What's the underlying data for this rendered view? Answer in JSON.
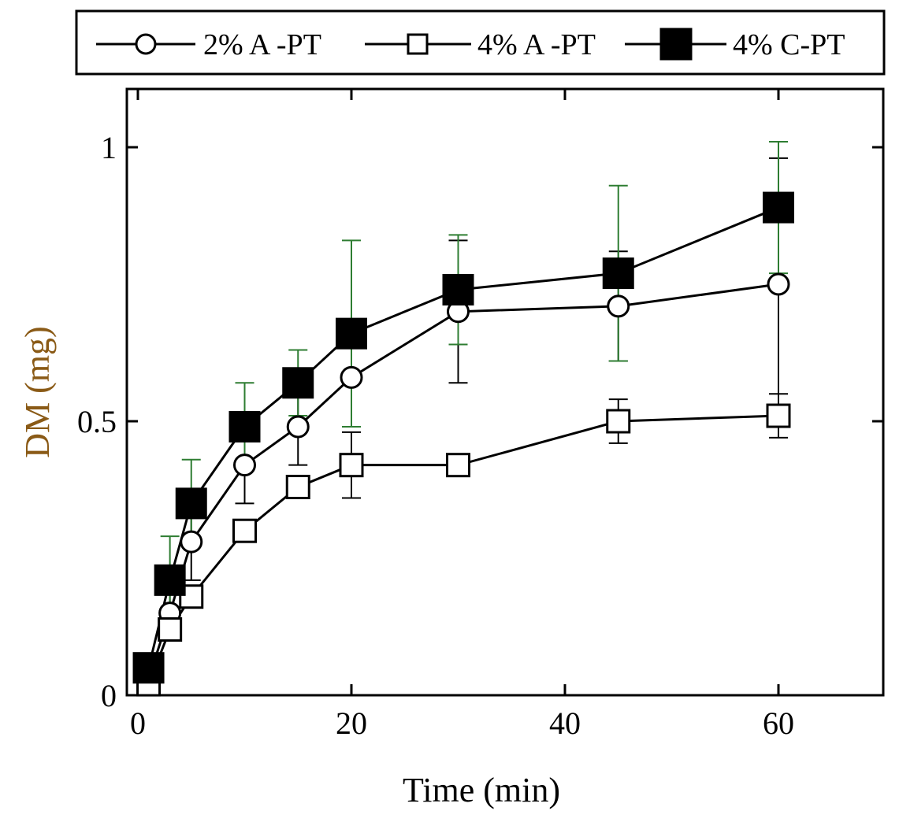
{
  "chart_data": {
    "type": "line",
    "title": "",
    "xlabel": "Time (min)",
    "ylabel": "DM (mg)",
    "xlim": [
      0,
      70
    ],
    "ylim": [
      0,
      1.1
    ],
    "xticks": [
      0,
      20,
      40,
      60
    ],
    "yticks": [
      0,
      0.5,
      1
    ],
    "x_tick_labels": [
      "0",
      "20",
      "40",
      "60"
    ],
    "y_tick_labels": [
      "0",
      "0.5",
      "1"
    ],
    "grid": false,
    "legend_position": "top, outside plot area",
    "colors": {
      "line": "#000000",
      "errorbar_green": "#2e7d32",
      "errorbar_black": "#000000",
      "axis_title": "#8a5a16"
    },
    "series": [
      {
        "name": "2% A -PT",
        "marker": "open-circle",
        "x": [
          1,
          3,
          5,
          10,
          15,
          20,
          30,
          45,
          60
        ],
        "y": [
          0.03,
          0.15,
          0.28,
          0.42,
          0.49,
          0.58,
          0.7,
          0.71,
          0.75
        ],
        "err": [
          0.01,
          0.05,
          0.07,
          0.07,
          0.07,
          0.09,
          0.13,
          0.1,
          0.23
        ],
        "errbar_color": "#000000"
      },
      {
        "name": "4% A -PT",
        "marker": "open-square",
        "x": [
          1,
          3,
          5,
          10,
          15,
          20,
          30,
          45,
          60
        ],
        "y": [
          0.02,
          0.12,
          0.18,
          0.3,
          0.38,
          0.42,
          0.42,
          0.5,
          0.51
        ],
        "err": [
          0.01,
          0.02,
          0.02,
          0.02,
          0.01,
          0.06,
          0.01,
          0.04,
          0.04
        ],
        "errbar_color": "#000000"
      },
      {
        "name": "4% C-PT",
        "marker": "filled-square",
        "x": [
          1,
          3,
          5,
          10,
          15,
          20,
          30,
          45,
          60
        ],
        "y": [
          0.05,
          0.21,
          0.35,
          0.49,
          0.57,
          0.66,
          0.74,
          0.77,
          0.89
        ],
        "err": [
          0.01,
          0.08,
          0.08,
          0.08,
          0.06,
          0.17,
          0.1,
          0.16,
          0.12
        ],
        "errbar_color": "#2e7d32"
      }
    ]
  }
}
